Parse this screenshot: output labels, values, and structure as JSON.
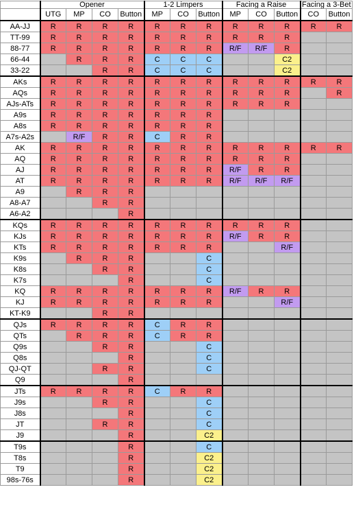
{
  "header": {
    "groups": [
      {
        "label": "Opener",
        "span": 4
      },
      {
        "label": "1-2 Limpers",
        "span": 3
      },
      {
        "label": "Facing a Raise",
        "span": 3
      },
      {
        "label": "Facing a 3-Bet",
        "span": 2
      }
    ],
    "columns": [
      "UTG",
      "MP",
      "CO",
      "Button",
      "MP",
      "CO",
      "Button",
      "MP",
      "CO",
      "Button",
      "CO",
      "Button"
    ]
  },
  "colors": {
    "R": "#f4777a",
    "R/F": "#c29bf0",
    "C": "#9ecff7",
    "C2": "#fbf08c",
    "empty": "#c4c4c4"
  },
  "sections": [
    {
      "rows": [
        {
          "hand": "AA-JJ",
          "cells": [
            "R",
            "R",
            "R",
            "R",
            "R",
            "R",
            "R",
            "R",
            "R",
            "R",
            "R",
            "R"
          ]
        },
        {
          "hand": "TT-99",
          "cells": [
            "R",
            "R",
            "R",
            "R",
            "R",
            "R",
            "R",
            "R",
            "R",
            "R",
            "",
            ""
          ]
        },
        {
          "hand": "88-77",
          "cells": [
            "R",
            "R",
            "R",
            "R",
            "R",
            "R",
            "R",
            "R/F",
            "R/F",
            "R",
            "",
            ""
          ]
        },
        {
          "hand": "66-44",
          "cells": [
            "",
            "R",
            "R",
            "R",
            "C",
            "C",
            "C",
            "",
            "",
            "C2",
            "",
            ""
          ]
        },
        {
          "hand": "33-22",
          "cells": [
            "",
            "",
            "R",
            "R",
            "C",
            "C",
            "C",
            "",
            "",
            "C2",
            "",
            ""
          ]
        }
      ]
    },
    {
      "rows": [
        {
          "hand": "AKs",
          "cells": [
            "R",
            "R",
            "R",
            "R",
            "R",
            "R",
            "R",
            "R",
            "R",
            "R",
            "R",
            "R"
          ]
        },
        {
          "hand": "AQs",
          "cells": [
            "R",
            "R",
            "R",
            "R",
            "R",
            "R",
            "R",
            "R",
            "R",
            "R",
            "",
            "R"
          ]
        },
        {
          "hand": "AJs-ATs",
          "cells": [
            "R",
            "R",
            "R",
            "R",
            "R",
            "R",
            "R",
            "R",
            "R",
            "R",
            "",
            ""
          ]
        },
        {
          "hand": "A9s",
          "cells": [
            "R",
            "R",
            "R",
            "R",
            "R",
            "R",
            "R",
            "",
            "",
            "",
            "",
            ""
          ]
        },
        {
          "hand": "A8s",
          "cells": [
            "R",
            "R",
            "R",
            "R",
            "R",
            "R",
            "R",
            "",
            "",
            "",
            "",
            ""
          ]
        },
        {
          "hand": "A7s-A2s",
          "cells": [
            "",
            "R/F",
            "R",
            "R",
            "C",
            "R",
            "R",
            "",
            "",
            "",
            "",
            ""
          ]
        },
        {
          "hand": "AK",
          "cells": [
            "R",
            "R",
            "R",
            "R",
            "R",
            "R",
            "R",
            "R",
            "R",
            "R",
            "R",
            "R"
          ]
        },
        {
          "hand": "AQ",
          "cells": [
            "R",
            "R",
            "R",
            "R",
            "R",
            "R",
            "R",
            "R",
            "R",
            "R",
            "",
            ""
          ]
        },
        {
          "hand": "AJ",
          "cells": [
            "R",
            "R",
            "R",
            "R",
            "R",
            "R",
            "R",
            "R/F",
            "R",
            "R",
            "",
            ""
          ]
        },
        {
          "hand": "AT",
          "cells": [
            "R",
            "R",
            "R",
            "R",
            "R",
            "R",
            "R",
            "R/F",
            "R/F",
            "R/F",
            "",
            ""
          ]
        },
        {
          "hand": "A9",
          "cells": [
            "",
            "R",
            "R",
            "R",
            "",
            "",
            "",
            "",
            "",
            "",
            "",
            ""
          ]
        },
        {
          "hand": "A8-A7",
          "cells": [
            "",
            "",
            "R",
            "R",
            "",
            "",
            "",
            "",
            "",
            "",
            "",
            ""
          ]
        },
        {
          "hand": "A6-A2",
          "cells": [
            "",
            "",
            "",
            "R",
            "",
            "",
            "",
            "",
            "",
            "",
            "",
            ""
          ]
        }
      ]
    },
    {
      "rows": [
        {
          "hand": "KQs",
          "cells": [
            "R",
            "R",
            "R",
            "R",
            "R",
            "R",
            "R",
            "R",
            "R",
            "R",
            "",
            ""
          ]
        },
        {
          "hand": "KJs",
          "cells": [
            "R",
            "R",
            "R",
            "R",
            "R",
            "R",
            "R",
            "R/F",
            "R",
            "R",
            "",
            ""
          ]
        },
        {
          "hand": "KTs",
          "cells": [
            "R",
            "R",
            "R",
            "R",
            "R",
            "R",
            "R",
            "",
            "",
            "R/F",
            "",
            ""
          ]
        },
        {
          "hand": "K9s",
          "cells": [
            "",
            "R",
            "R",
            "R",
            "",
            "",
            "C",
            "",
            "",
            "",
            "",
            ""
          ]
        },
        {
          "hand": "K8s",
          "cells": [
            "",
            "",
            "R",
            "R",
            "",
            "",
            "C",
            "",
            "",
            "",
            "",
            ""
          ]
        },
        {
          "hand": "K7s",
          "cells": [
            "",
            "",
            "",
            "R",
            "",
            "",
            "C",
            "",
            "",
            "",
            "",
            ""
          ]
        },
        {
          "hand": "KQ",
          "cells": [
            "R",
            "R",
            "R",
            "R",
            "R",
            "R",
            "R",
            "R/F",
            "R",
            "R",
            "",
            ""
          ]
        },
        {
          "hand": "KJ",
          "cells": [
            "R",
            "R",
            "R",
            "R",
            "R",
            "R",
            "R",
            "",
            "",
            "R/F",
            "",
            ""
          ]
        },
        {
          "hand": "KT-K9",
          "cells": [
            "",
            "",
            "R",
            "R",
            "",
            "",
            "",
            "",
            "",
            "",
            "",
            ""
          ]
        }
      ]
    },
    {
      "rows": [
        {
          "hand": "QJs",
          "cells": [
            "R",
            "R",
            "R",
            "R",
            "C",
            "R",
            "R",
            "",
            "",
            "",
            "",
            ""
          ]
        },
        {
          "hand": "QTs",
          "cells": [
            "",
            "R",
            "R",
            "R",
            "C",
            "R",
            "R",
            "",
            "",
            "",
            "",
            ""
          ]
        },
        {
          "hand": "Q9s",
          "cells": [
            "",
            "",
            "R",
            "R",
            "",
            "",
            "C",
            "",
            "",
            "",
            "",
            ""
          ]
        },
        {
          "hand": "Q8s",
          "cells": [
            "",
            "",
            "",
            "R",
            "",
            "",
            "C",
            "",
            "",
            "",
            "",
            ""
          ]
        },
        {
          "hand": "QJ-QT",
          "cells": [
            "",
            "",
            "R",
            "R",
            "",
            "",
            "C",
            "",
            "",
            "",
            "",
            ""
          ]
        },
        {
          "hand": "Q9",
          "cells": [
            "",
            "",
            "",
            "R",
            "",
            "",
            "",
            "",
            "",
            "",
            "",
            ""
          ]
        }
      ]
    },
    {
      "rows": [
        {
          "hand": "JTs",
          "cells": [
            "R",
            "R",
            "R",
            "R",
            "C",
            "R",
            "R",
            "",
            "",
            "",
            "",
            ""
          ]
        },
        {
          "hand": "J9s",
          "cells": [
            "",
            "",
            "R",
            "R",
            "",
            "",
            "C",
            "",
            "",
            "",
            "",
            ""
          ]
        },
        {
          "hand": "J8s",
          "cells": [
            "",
            "",
            "",
            "R",
            "",
            "",
            "C",
            "",
            "",
            "",
            "",
            ""
          ]
        },
        {
          "hand": "JT",
          "cells": [
            "",
            "",
            "R",
            "R",
            "",
            "",
            "C",
            "",
            "",
            "",
            "",
            ""
          ]
        },
        {
          "hand": "J9",
          "cells": [
            "",
            "",
            "",
            "R",
            "",
            "",
            "C2",
            "",
            "",
            "",
            "",
            ""
          ]
        }
      ]
    },
    {
      "rows": [
        {
          "hand": "T9s",
          "cells": [
            "",
            "",
            "",
            "R",
            "",
            "",
            "C",
            "",
            "",
            "",
            "",
            ""
          ]
        },
        {
          "hand": "T8s",
          "cells": [
            "",
            "",
            "",
            "R",
            "",
            "",
            "C2",
            "",
            "",
            "",
            "",
            ""
          ]
        },
        {
          "hand": "T9",
          "cells": [
            "",
            "",
            "",
            "R",
            "",
            "",
            "C2",
            "",
            "",
            "",
            "",
            ""
          ]
        },
        {
          "hand": "98s-76s",
          "cells": [
            "",
            "",
            "",
            "R",
            "",
            "",
            "C2",
            "",
            "",
            "",
            "",
            ""
          ]
        }
      ]
    }
  ]
}
